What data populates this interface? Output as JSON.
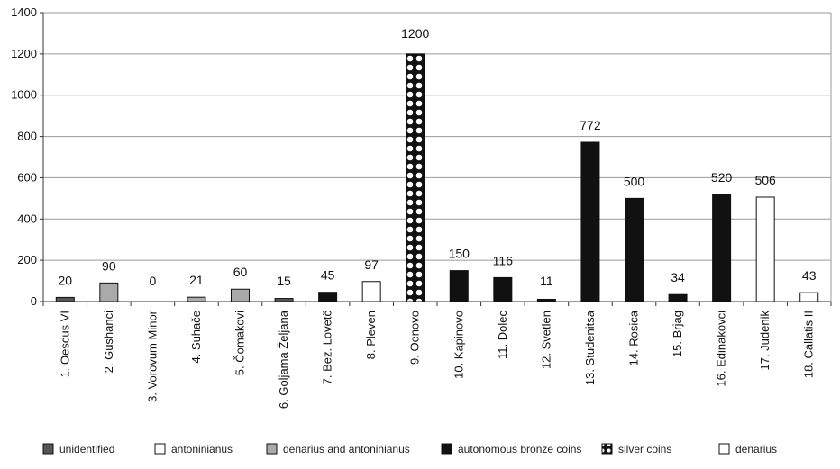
{
  "chart_data": {
    "type": "bar",
    "ylim": [
      0,
      1400
    ],
    "yticks": [
      0,
      200,
      400,
      600,
      800,
      1000,
      1200,
      1400
    ],
    "grid": true,
    "legend_position": "bottom",
    "categories": [
      "1. Oescus VI",
      "2. Gushanci",
      "3. Vorovum Minor",
      "4. Suhače",
      "5. Čomakovi",
      "6. Goljama Željana",
      "7. Bez. Lovetč",
      "8. Pleven",
      "9. Oenovo",
      "10. Kapinovo",
      "11. Dolec",
      "12. Svetlen",
      "13. Studenitsa",
      "14. Rosica",
      "15. Brjag",
      "16. Edinakovci",
      "17. Judenik",
      "18. Callatis II"
    ],
    "values": [
      20,
      90,
      0,
      21,
      60,
      15,
      45,
      97,
      1200,
      150,
      116,
      11,
      772,
      500,
      34,
      520,
      506,
      43
    ],
    "data_labels": [
      "20",
      "90",
      "0",
      "21",
      "60",
      "15",
      "45",
      "97",
      "1200",
      "150",
      "116",
      "11",
      "772",
      "500",
      "34",
      "520",
      "506",
      "43"
    ],
    "bar_types": [
      "unidentified",
      "denarius and antoninianus",
      "denarius and antoninianus",
      "denarius and antoninianus",
      "denarius and antoninianus",
      "unidentified",
      "autonomous bronze coins",
      "antoninianus",
      "silver coins",
      "autonomous bronze coins",
      "autonomous bronze coins",
      "autonomous bronze coins",
      "autonomous bronze coins",
      "autonomous bronze coins",
      "autonomous bronze coins",
      "autonomous bronze coins",
      "denarius",
      "antoninianus"
    ],
    "legend": [
      {
        "label": "unidentified",
        "fill": "#555555",
        "pattern": "solid"
      },
      {
        "label": "antoninianus",
        "fill": "#ffffff",
        "pattern": "solid"
      },
      {
        "label": "denarius and antoninianus",
        "fill": "#aaaaaa",
        "pattern": "solid"
      },
      {
        "label": "autonomous bronze coins",
        "fill": "#111111",
        "pattern": "solid"
      },
      {
        "label": "silver coins",
        "fill": "#111111",
        "pattern": "dots"
      },
      {
        "label": "denarius",
        "fill": "#ffffff",
        "pattern": "solid"
      }
    ]
  }
}
